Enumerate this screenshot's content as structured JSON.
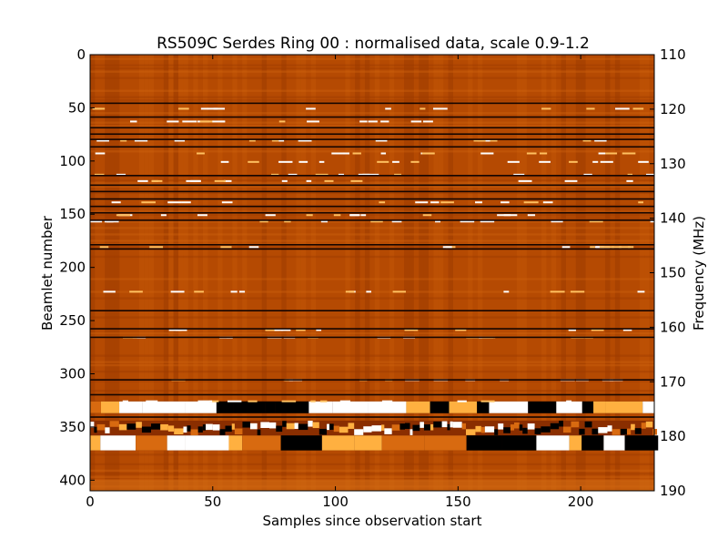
{
  "chart_data": {
    "type": "heatmap",
    "title": "RS509C Serdes Ring 00 : normalised data, scale 0.9-1.2",
    "xlabel": "Samples since observation start",
    "ylabel": "Beamlet number",
    "ylabel_right": "Frequency (MHz)",
    "xlim": [
      0,
      230
    ],
    "ylim": [
      0,
      410
    ],
    "ylim_right": [
      110,
      190
    ],
    "xticks": [
      0,
      50,
      100,
      150,
      200
    ],
    "yticks": [
      0,
      50,
      100,
      150,
      200,
      250,
      300,
      350,
      400
    ],
    "yticks_right": [
      110,
      120,
      130,
      140,
      150,
      160,
      170,
      180,
      190
    ],
    "colormap": "afmhot",
    "scale": [
      0.9,
      1.2
    ],
    "base_color": "#b54a02",
    "dark_rows": [
      45,
      58,
      68,
      74,
      79,
      86,
      113,
      122,
      128,
      135,
      142,
      148,
      155,
      178,
      182,
      240,
      257,
      265,
      305,
      319,
      340
    ],
    "bright_speckle_rows": [
      50,
      62,
      80,
      92,
      100,
      112,
      118,
      138,
      150,
      156,
      180,
      222,
      258,
      265,
      305,
      325
    ],
    "disturbed_bands": [
      {
        "from": 326,
        "to": 337,
        "kind": "bright-dark alternating"
      },
      {
        "from": 344,
        "to": 358,
        "kind": "speckled"
      },
      {
        "from": 358,
        "to": 372,
        "kind": "saturated black/white blocks"
      },
      {
        "from": 400,
        "to": 410,
        "kind": "mild bright"
      }
    ]
  }
}
